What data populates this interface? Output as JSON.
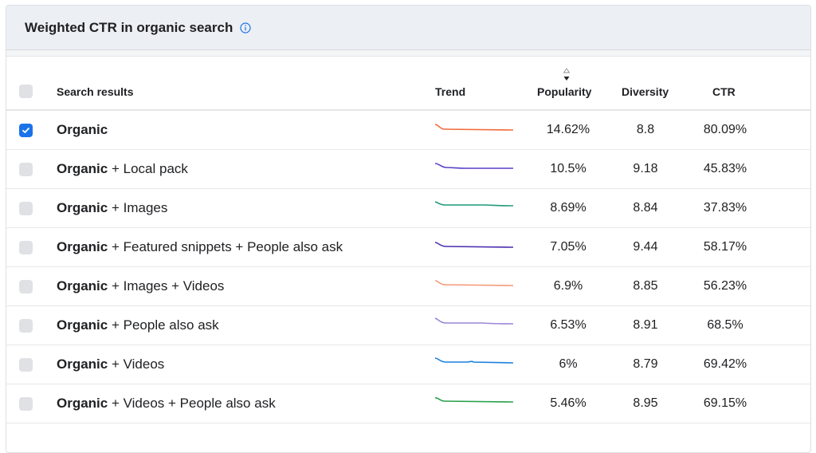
{
  "card": {
    "title": "Weighted CTR in organic search",
    "info_icon": "info-circle-icon"
  },
  "table": {
    "headers": {
      "name": "Search results",
      "trend": "Trend",
      "popularity": "Popularity",
      "diversity": "Diversity",
      "ctr": "CTR"
    },
    "sort_icon": "sort-descending-icon",
    "rows": [
      {
        "bold": "Organic",
        "rest": "",
        "popularity": "14.62%",
        "diversity": "8.8",
        "ctr": "80.09%",
        "checked": true,
        "color": "#f26b3a"
      },
      {
        "bold": "Organic",
        "rest": " + Local pack",
        "popularity": "10.5%",
        "diversity": "9.18",
        "ctr": "45.83%",
        "checked": false,
        "color": "#5b3fc4"
      },
      {
        "bold": "Organic",
        "rest": " + Images",
        "popularity": "8.69%",
        "diversity": "8.84",
        "ctr": "37.83%",
        "checked": false,
        "color": "#1e9a7a"
      },
      {
        "bold": "Organic",
        "rest": " + Featured snippets + People also ask",
        "popularity": "7.05%",
        "diversity": "9.44",
        "ctr": "58.17%",
        "checked": false,
        "color": "#4b2fb0"
      },
      {
        "bold": "Organic",
        "rest": " + Images + Videos",
        "popularity": "6.9%",
        "diversity": "8.85",
        "ctr": "56.23%",
        "checked": false,
        "color": "#f59a7a"
      },
      {
        "bold": "Organic",
        "rest": " + People also ask",
        "popularity": "6.53%",
        "diversity": "8.91",
        "ctr": "68.5%",
        "checked": false,
        "color": "#9b87d6"
      },
      {
        "bold": "Organic",
        "rest": " + Videos",
        "popularity": "6%",
        "diversity": "8.79",
        "ctr": "69.42%",
        "checked": false,
        "color": "#1a7fe0"
      },
      {
        "bold": "Organic",
        "rest": " + Videos + People also ask",
        "popularity": "5.46%",
        "diversity": "8.95",
        "ctr": "69.15%",
        "checked": false,
        "color": "#26a04a"
      }
    ]
  }
}
